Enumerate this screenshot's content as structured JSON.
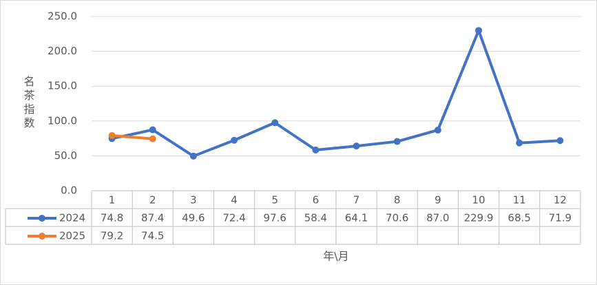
{
  "chart_data": {
    "type": "line",
    "y_label": "名茶指数",
    "x_label": "年\\月",
    "categories": [
      "1",
      "2",
      "3",
      "4",
      "5",
      "6",
      "7",
      "8",
      "9",
      "10",
      "11",
      "12"
    ],
    "series": [
      {
        "name": "2024",
        "color": "#4472c4",
        "values": [
          74.8,
          87.4,
          49.6,
          72.4,
          97.6,
          58.4,
          64.1,
          70.6,
          87.0,
          229.9,
          68.5,
          71.9
        ],
        "value_labels": [
          "74.8",
          "87.4",
          "49.6",
          "72.4",
          "97.6",
          "58.4",
          "64.1",
          "70.6",
          "87.0",
          "229.9",
          "68.5",
          "71.9"
        ]
      },
      {
        "name": "2025",
        "color": "#ed7d31",
        "values": [
          79.2,
          74.5,
          null,
          null,
          null,
          null,
          null,
          null,
          null,
          null,
          null,
          null
        ],
        "value_labels": [
          "79.2",
          "74.5",
          null,
          null,
          null,
          null,
          null,
          null,
          null,
          null,
          null,
          null
        ]
      }
    ],
    "ylim": [
      0,
      250
    ],
    "yticks": [
      {
        "value": 0,
        "label": "0.0"
      },
      {
        "value": 50,
        "label": "50.0"
      },
      {
        "value": 100,
        "label": "100.0"
      },
      {
        "value": 150,
        "label": "150.0"
      },
      {
        "value": 200,
        "label": "200.0"
      },
      {
        "value": 250,
        "label": "250.0"
      }
    ],
    "grid": true
  }
}
